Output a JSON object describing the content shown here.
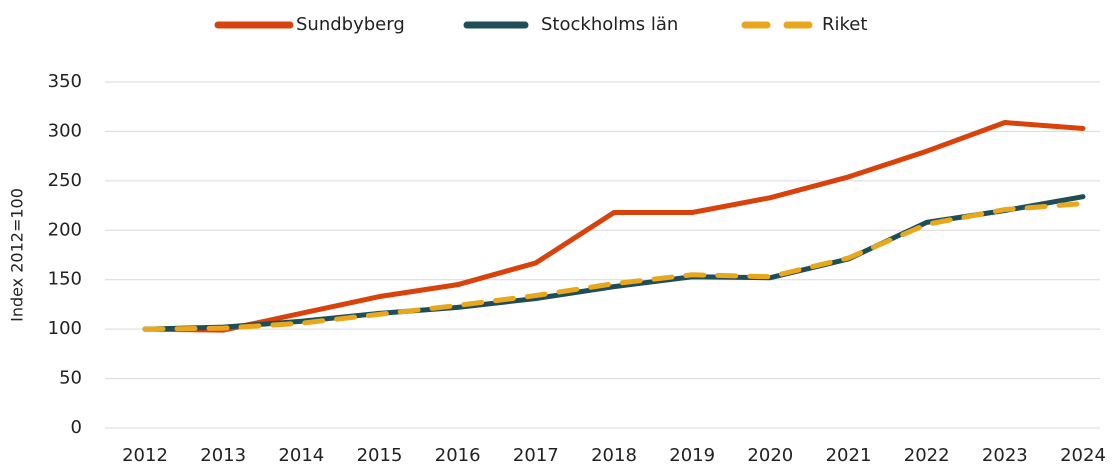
{
  "chart_data": {
    "type": "line",
    "y_label": "Index 2012=100",
    "categories": [
      "2012",
      "2013",
      "2014",
      "2015",
      "2016",
      "2017",
      "2018",
      "2019",
      "2020",
      "2021",
      "2022",
      "2023",
      "2024"
    ],
    "series": [
      {
        "name": "Sundbyberg",
        "color": "#d9420b",
        "dashed": false,
        "values": [
          100,
          99,
          116,
          133,
          145,
          167,
          218,
          218,
          233,
          254,
          280,
          309,
          303
        ]
      },
      {
        "name": "Stockholms län",
        "color": "#1e4e57",
        "dashed": false,
        "values": [
          100,
          102,
          108,
          116,
          122,
          131,
          143,
          153,
          152,
          171,
          208,
          220,
          234
        ]
      },
      {
        "name": "Riket",
        "color": "#e8a71c",
        "dashed": true,
        "values": [
          100,
          101,
          106,
          115,
          124,
          134,
          146,
          155,
          153,
          172,
          206,
          221,
          227
        ]
      }
    ],
    "ylim": [
      0,
      350
    ],
    "yticks": [
      0,
      50,
      100,
      150,
      200,
      250,
      300,
      350
    ],
    "grid": true,
    "legend": "top"
  }
}
